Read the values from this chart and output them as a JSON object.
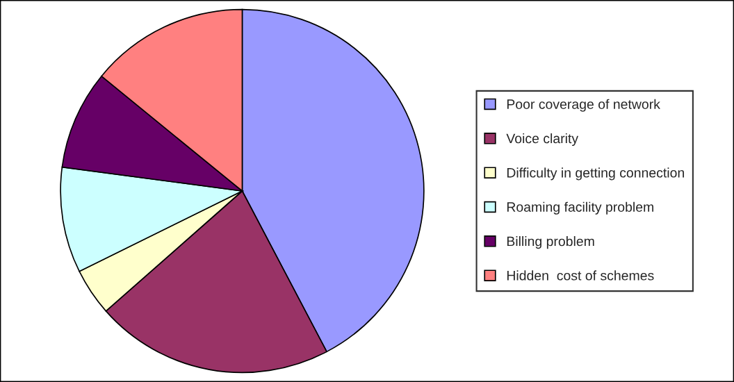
{
  "chart_data": {
    "type": "pie",
    "categories": [
      "Poor coverage of network",
      "Voice clarity",
      "Difficulty in getting connection",
      "Roaming facility problem",
      "Billing problem",
      "Hidden  cost of schemes"
    ],
    "values": [
      42.3,
      21.2,
      4.2,
      9.4,
      8.8,
      14.1
    ],
    "colors": [
      "#9999ff",
      "#993366",
      "#ffffcc",
      "#ccffff",
      "#660066",
      "#ff8080"
    ],
    "legend": "right"
  }
}
